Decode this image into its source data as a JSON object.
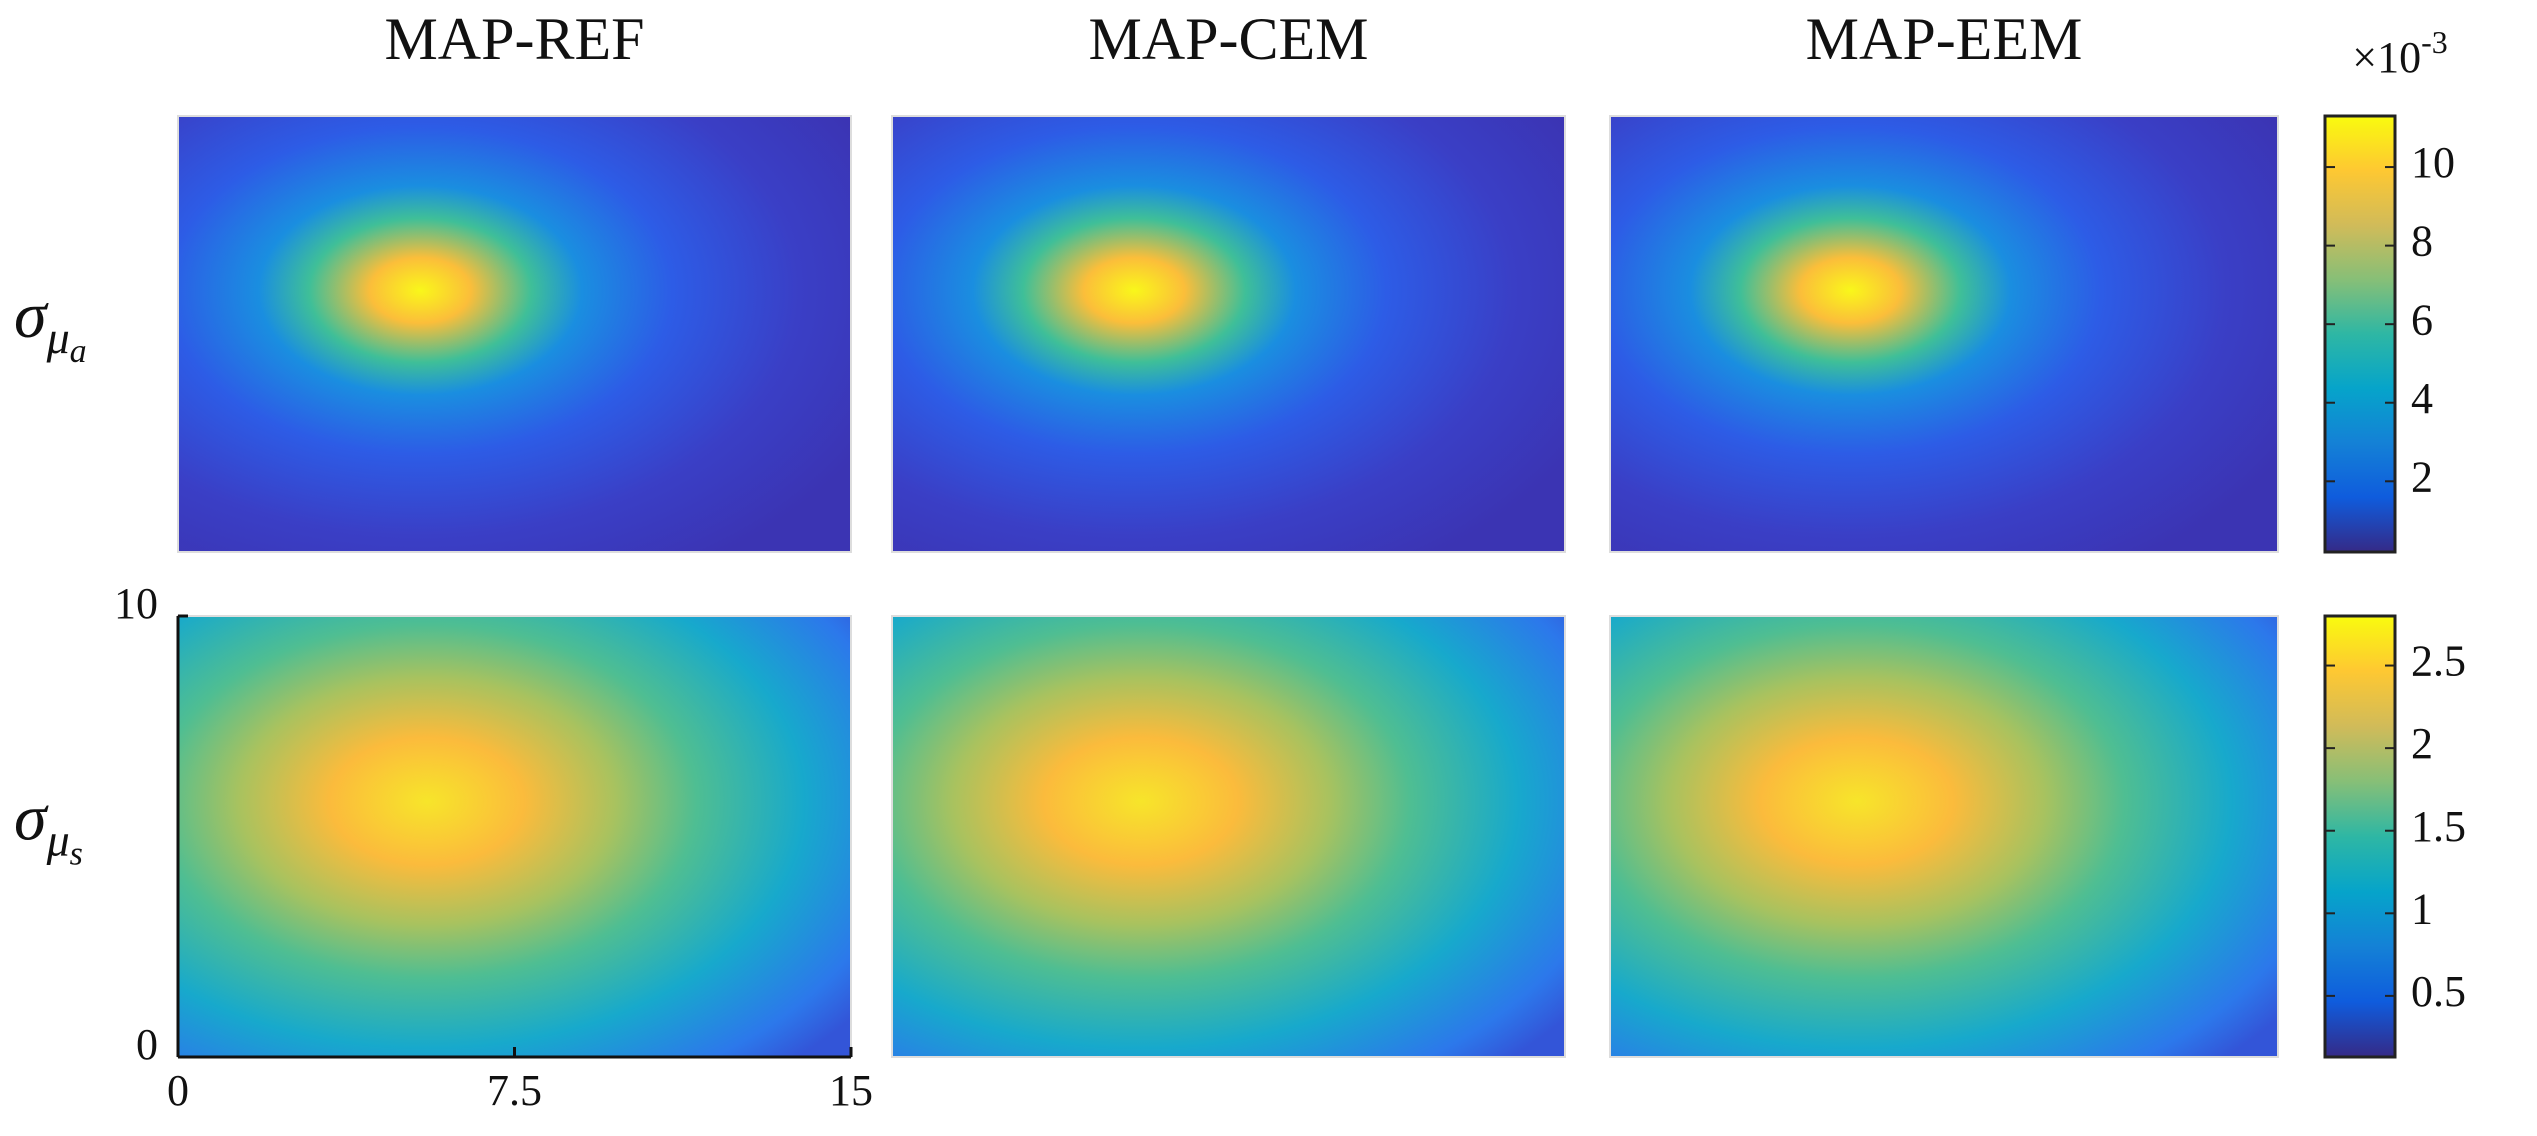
{
  "chart_data": {
    "type": "heatmap",
    "columns": [
      "MAP-REF",
      "MAP-CEM",
      "MAP-EEM"
    ],
    "rows": [
      {
        "base": "σ",
        "sub": "μ",
        "subsub": "a"
      },
      {
        "base": "σ",
        "sub": "μ",
        "subsub": "s"
      }
    ],
    "xlim": [
      0,
      15
    ],
    "xticks": [
      0,
      7.5,
      15
    ],
    "ylim": [
      0,
      10
    ],
    "yticks": [
      0,
      10
    ],
    "colorbars": [
      {
        "multiplier": {
          "base": "×10",
          "exp": "-3"
        },
        "lim": [
          0.2,
          11.3
        ],
        "ticks": [
          2,
          4,
          6,
          8,
          10
        ]
      },
      {
        "lim": [
          0.13,
          2.8
        ],
        "ticks": [
          0.5,
          1,
          1.5,
          2,
          2.5
        ]
      }
    ]
  }
}
